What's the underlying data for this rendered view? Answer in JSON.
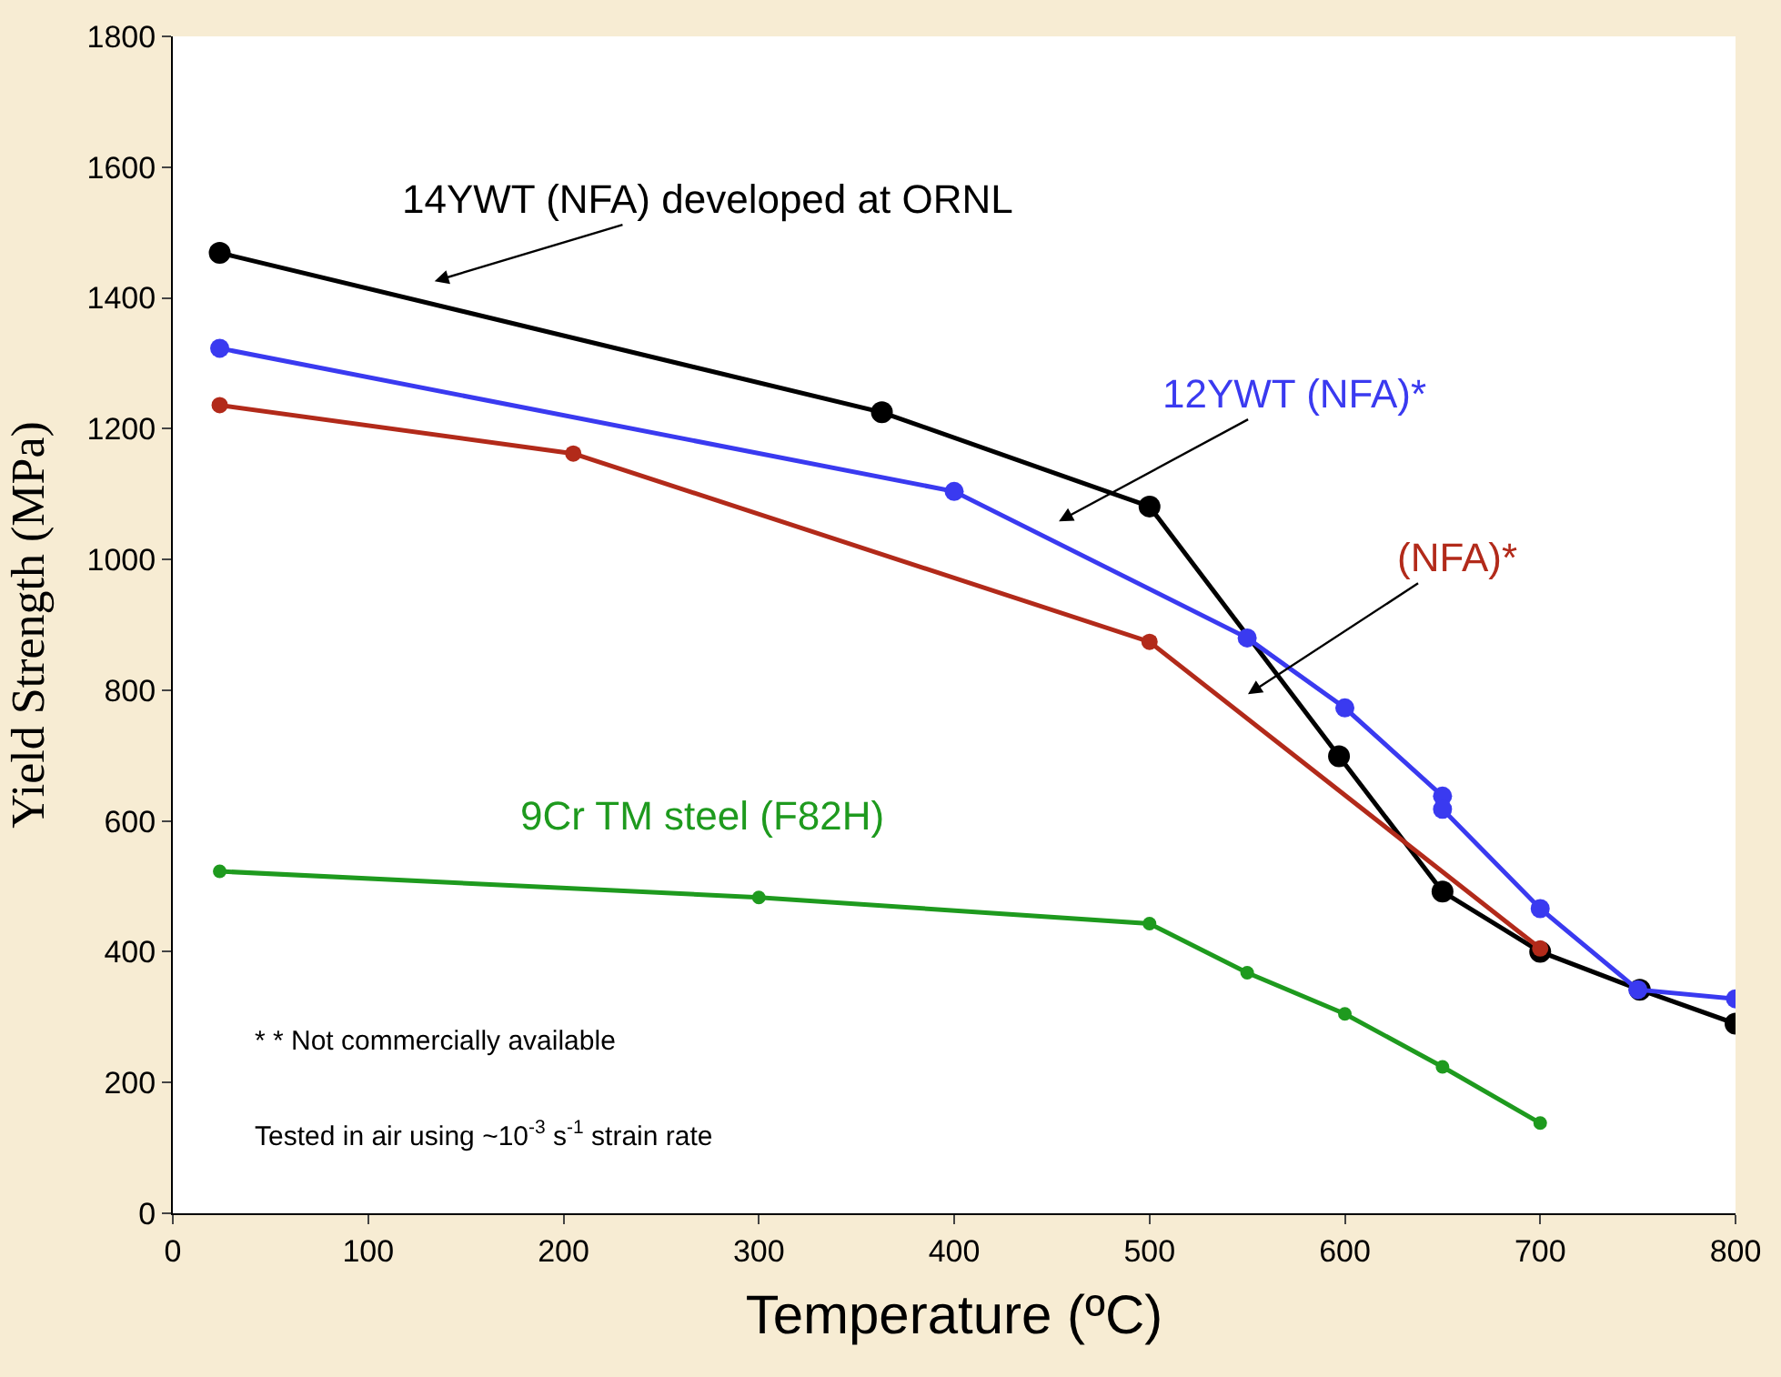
{
  "chart_data": {
    "type": "line",
    "xlabel": "Temperature (ºC)",
    "ylabel": "Yield Strength (MPa)",
    "xlim": [
      0,
      800
    ],
    "xticks": [
      0,
      100,
      200,
      300,
      400,
      500,
      600,
      700,
      800
    ],
    "ylim": [
      0,
      1800
    ],
    "yticks": [
      0,
      200,
      400,
      600,
      800,
      1000,
      1200,
      1400,
      1600,
      1800
    ],
    "marker": "circle",
    "line_style": "solid",
    "series": [
      {
        "color": "#000000",
        "x": [
          24,
          363,
          500,
          597,
          650,
          700,
          751,
          800
        ],
        "values": [
          1469,
          1225,
          1081,
          699,
          492,
          400,
          342,
          290
        ]
      },
      {
        "color": "#3a3af0",
        "x": [
          24,
          400,
          550,
          600,
          650,
          650,
          700,
          750,
          800
        ],
        "values": [
          1323,
          1104,
          880,
          773,
          638,
          618,
          466,
          342,
          328
        ]
      },
      {
        "color": "#b22a1a",
        "x": [
          24,
          205,
          500,
          700
        ],
        "values": [
          1236,
          1162,
          874,
          405
        ]
      },
      {
        "color": "#1e9a1e",
        "x": [
          24,
          300,
          500,
          550,
          600,
          650,
          700
        ],
        "values": [
          523,
          483,
          443,
          368,
          305,
          224,
          138
        ]
      }
    ],
    "annotations": [
      "14YWT (NFA) developed at ORNL",
      "12YWT (NFA)*",
      "(NFA)*",
      "9Cr TM steel (F82H)",
      "* * Not commercially available",
      "Tested in air using ~10$^{-3}$ s$^{-1}$ strain rate"
    ]
  }
}
